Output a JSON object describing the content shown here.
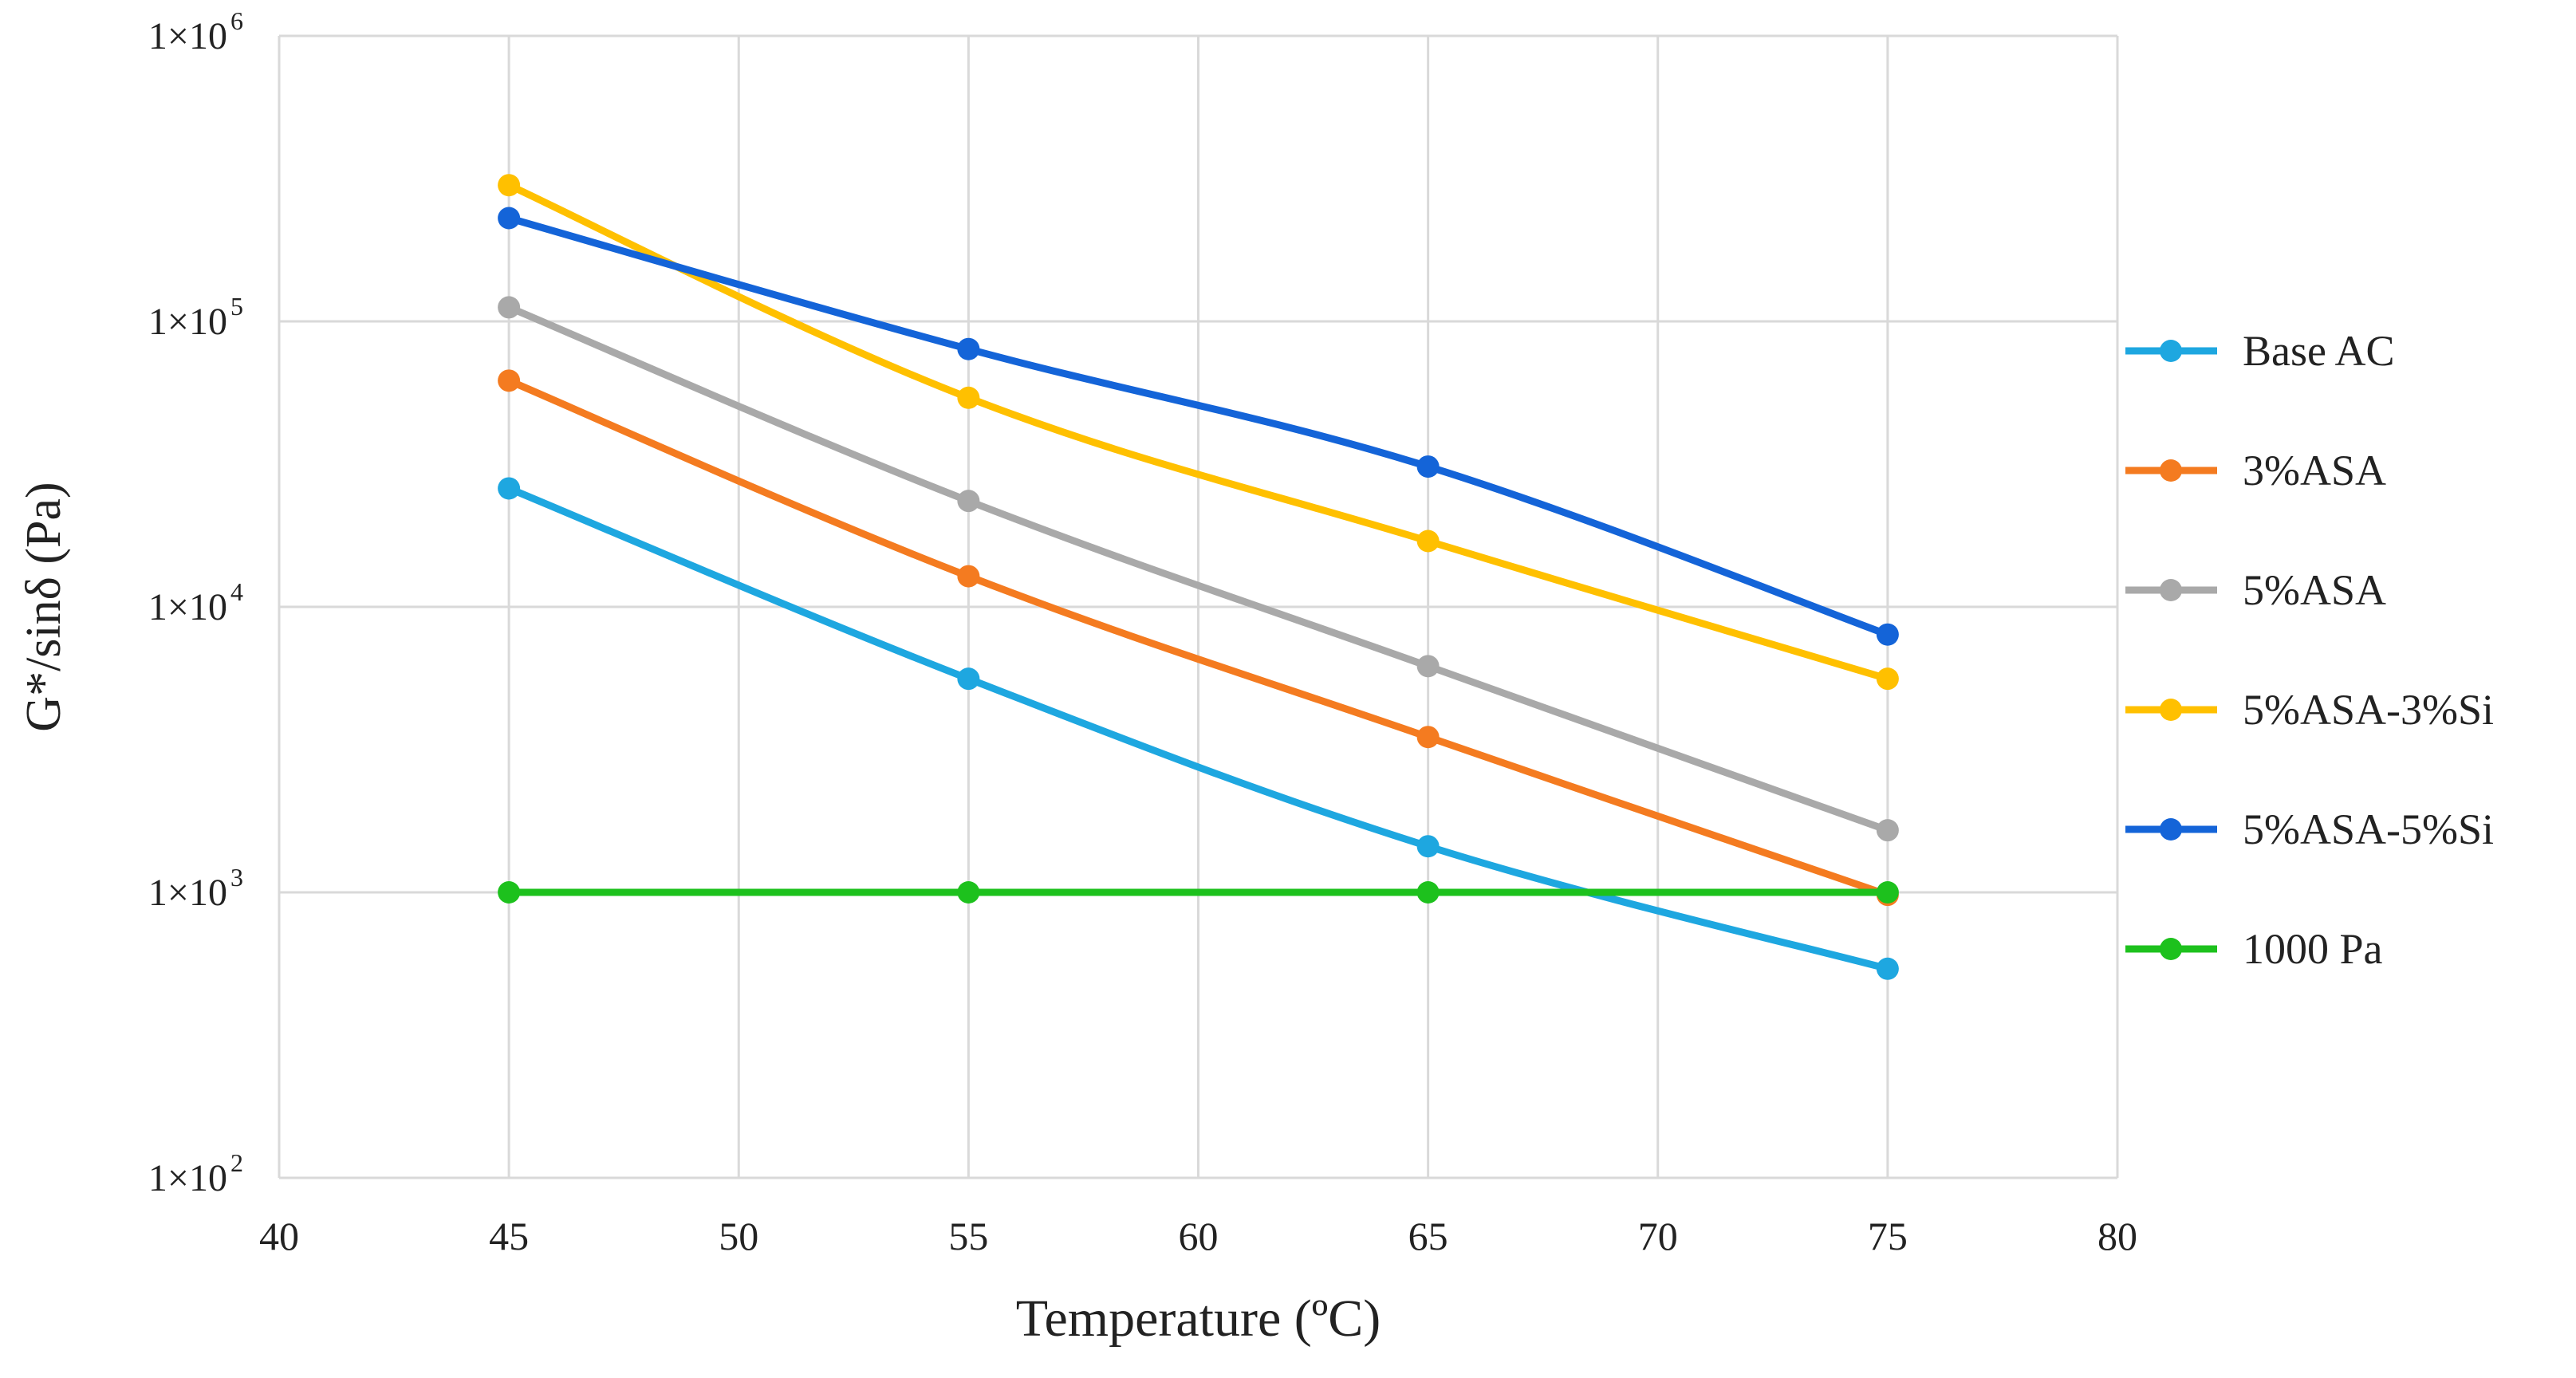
{
  "chart_data": {
    "type": "line",
    "title": "",
    "xlabel": "Temperature (ºC)",
    "ylabel": "G*/sinδ (Pa)",
    "x": [
      45,
      55,
      65,
      75
    ],
    "xlim": [
      40,
      80
    ],
    "xticks": [
      40,
      45,
      50,
      55,
      60,
      65,
      70,
      75,
      80
    ],
    "yscale": "log",
    "ylim": [
      100,
      1000000
    ],
    "yticks": [
      {
        "value": 100,
        "base": "1×10",
        "exp": "2"
      },
      {
        "value": 1000,
        "base": "1×10",
        "exp": "3"
      },
      {
        "value": 10000,
        "base": "1×10",
        "exp": "4"
      },
      {
        "value": 100000,
        "base": "1×10",
        "exp": "5"
      },
      {
        "value": 1000000,
        "base": "1×10",
        "exp": "6"
      }
    ],
    "grid": true,
    "legend_position": "right",
    "series": [
      {
        "name": "Base AC",
        "color": "#1ea7e0",
        "values": [
          26000,
          5600,
          1450,
          540
        ]
      },
      {
        "name": "3%ASA",
        "color": "#f47b20",
        "values": [
          62000,
          12800,
          3500,
          980
        ]
      },
      {
        "name": " 5%ASA",
        "color": "#a9a9a9",
        "values": [
          112000,
          23500,
          6200,
          1650
        ]
      },
      {
        "name": "5%ASA-3%Si",
        "color": "#ffc000",
        "values": [
          300000,
          54000,
          17000,
          5600
        ]
      },
      {
        "name": "5%ASA-5%Si",
        "color": "#1464d8",
        "values": [
          230000,
          80000,
          31000,
          8000
        ]
      },
      {
        "name": "1000 Pa",
        "color": "#1dc11d",
        "values": [
          1000,
          1000,
          1000,
          1000
        ]
      }
    ]
  }
}
